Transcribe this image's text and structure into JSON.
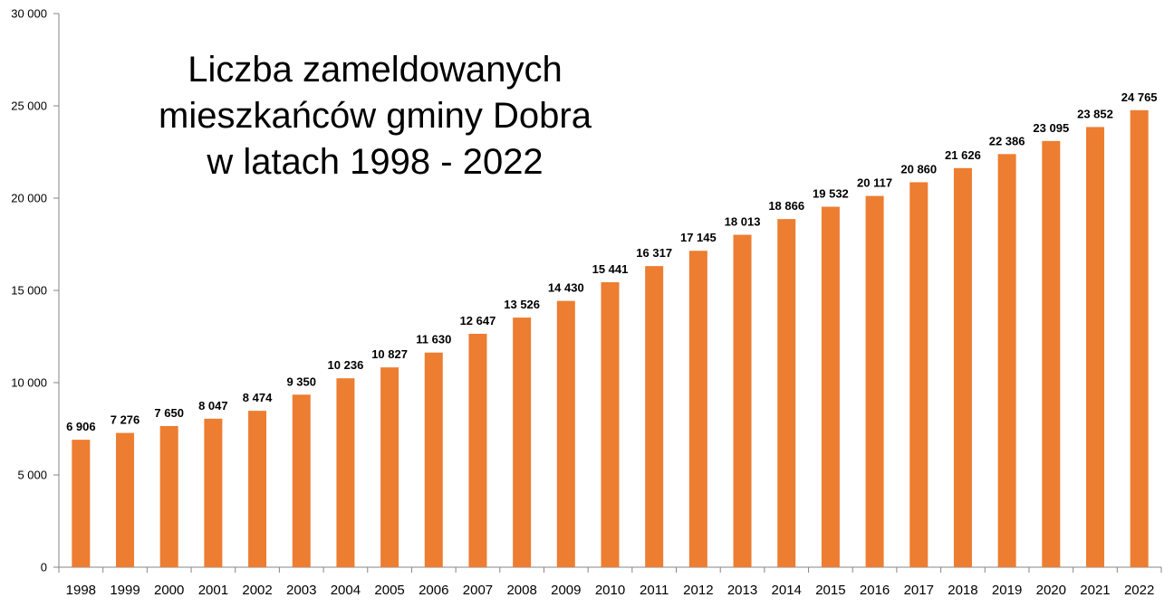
{
  "chart_data": {
    "type": "bar",
    "title_lines": [
      "Liczba zameldowanych",
      "mieszkańców gminy Dobra",
      "w latach 1998 - 2022"
    ],
    "categories": [
      "1998",
      "1999",
      "2000",
      "2001",
      "2002",
      "2003",
      "2004",
      "2005",
      "2006",
      "2007",
      "2008",
      "2009",
      "2010",
      "2011",
      "2012",
      "2013",
      "2014",
      "2015",
      "2016",
      "2017",
      "2018",
      "2019",
      "2020",
      "2021",
      "2022"
    ],
    "values": [
      6906,
      7276,
      7650,
      8047,
      8474,
      9350,
      10236,
      10827,
      11630,
      12647,
      13526,
      14430,
      15441,
      16317,
      17145,
      18013,
      18866,
      19532,
      20117,
      20860,
      21626,
      22386,
      23095,
      23852,
      24765
    ],
    "value_labels": [
      "6 906",
      "7 276",
      "7 650",
      "8 047",
      "8 474",
      "9 350",
      "10 236",
      "10 827",
      "11 630",
      "12 647",
      "13 526",
      "14 430",
      "15 441",
      "16 317",
      "17 145",
      "18 013",
      "18 866",
      "19 532",
      "20 117",
      "20 860",
      "21 626",
      "22 386",
      "23 095",
      "23 852",
      "24 765"
    ],
    "yticks": [
      0,
      5000,
      10000,
      15000,
      20000,
      25000,
      30000
    ],
    "ytick_labels": [
      "0",
      "5 000",
      "10 000",
      "15 000",
      "20 000",
      "25 000",
      "30 000"
    ],
    "ylim": [
      0,
      30000
    ],
    "xlabel": "",
    "ylabel": "",
    "grid": false,
    "bar_color": "#ED7D31",
    "axis_color": "#868686"
  }
}
